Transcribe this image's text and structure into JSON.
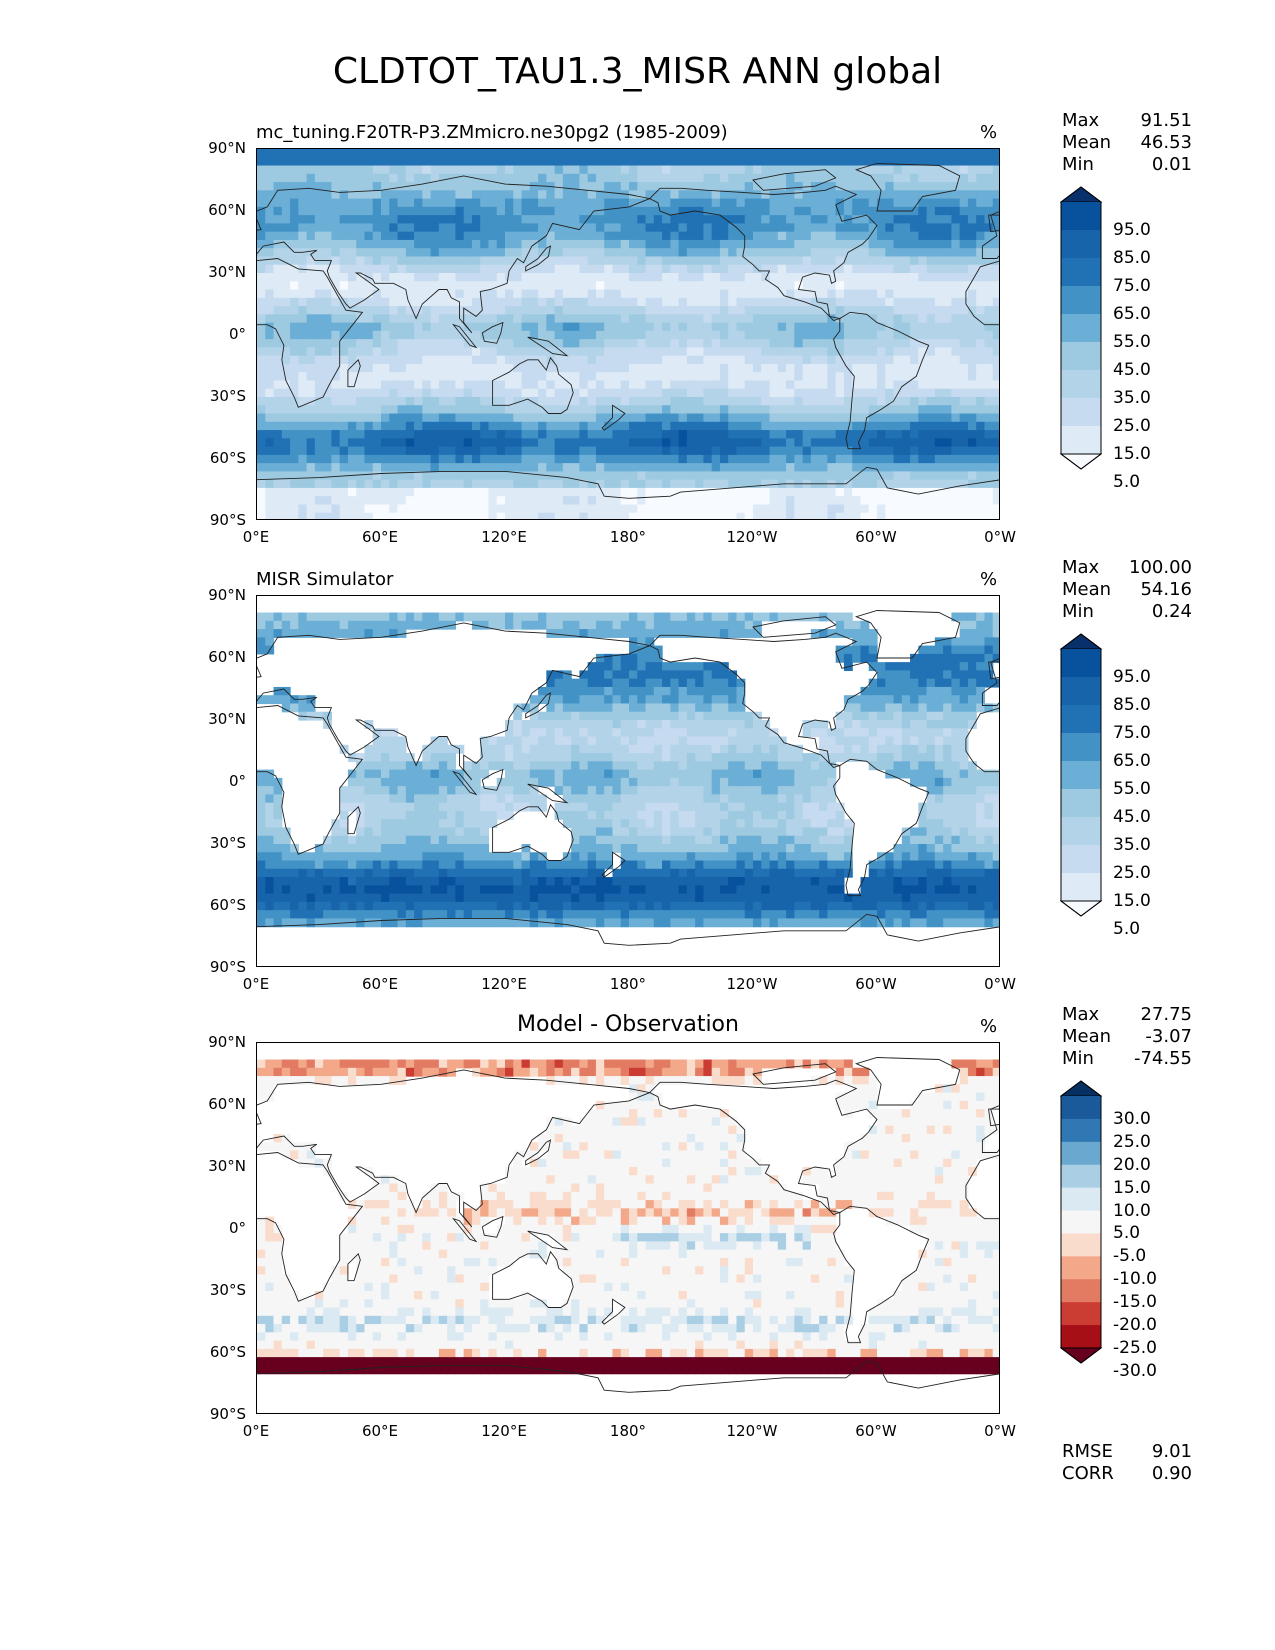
{
  "figure_title": "CLDTOT_TAU1.3_MISR ANN global",
  "y_ticks": [
    "90°N",
    "60°N",
    "30°N",
    "0°",
    "30°S",
    "60°S",
    "90°S"
  ],
  "x_ticks": [
    "0°E",
    "60°E",
    "120°E",
    "180°",
    "120°W",
    "60°W",
    "0°W"
  ],
  "colors": {
    "blues": [
      "#f7fbff",
      "#deebf7",
      "#c6dbef",
      "#b3d3e8",
      "#9ecae1",
      "#6baed6",
      "#4292c6",
      "#2171b5",
      "#1764ab",
      "#08519c",
      "#08306b"
    ],
    "diverging": [
      "#67001f",
      "#a50f15",
      "#cb3c33",
      "#e27b62",
      "#f2a889",
      "#fadccc",
      "#f6f6f6",
      "#dbeaf2",
      "#aacfe5",
      "#6aa8d0",
      "#2f78b4",
      "#1b5a9a",
      "#053061"
    ]
  },
  "chart_data": [
    {
      "type": "heatmap",
      "title": "mc_tuning.F20TR-P3.ZMmicro.ne30pg2 (1985-2009)",
      "units": "%",
      "stats": [
        [
          "Max",
          "91.51"
        ],
        [
          "Mean",
          "46.53"
        ],
        [
          "Min",
          "0.01"
        ]
      ],
      "colorbar_levels": [
        "95.0",
        "85.0",
        "75.0",
        "65.0",
        "55.0",
        "45.0",
        "35.0",
        "25.0",
        "15.0",
        "5.0"
      ],
      "extend": "both",
      "field": "model",
      "xlim": [
        0,
        360
      ],
      "ylim": [
        -90,
        90
      ]
    },
    {
      "type": "heatmap",
      "title": "MISR Simulator",
      "units": "%",
      "stats": [
        [
          "Max",
          "100.00"
        ],
        [
          "Mean",
          "54.16"
        ],
        [
          "Min",
          "0.24"
        ]
      ],
      "colorbar_levels": [
        "95.0",
        "85.0",
        "75.0",
        "65.0",
        "55.0",
        "45.0",
        "35.0",
        "25.0",
        "15.0",
        "5.0"
      ],
      "extend": "both",
      "field": "obs",
      "xlim": [
        0,
        360
      ],
      "ylim": [
        -90,
        90
      ]
    },
    {
      "type": "heatmap",
      "title": "Model - Observation",
      "units": "%",
      "stats": [
        [
          "Max",
          "27.75"
        ],
        [
          "Mean",
          "-3.07"
        ],
        [
          "Min",
          "-74.55"
        ]
      ],
      "colorbar_levels": [
        "30.0",
        "25.0",
        "20.0",
        "15.0",
        "10.0",
        "5.0",
        "-5.0",
        "-10.0",
        "-15.0",
        "-20.0",
        "-25.0",
        "-30.0"
      ],
      "extend": "both",
      "field": "diff",
      "metrics": [
        [
          "RMSE",
          "9.01"
        ],
        [
          "CORR",
          "0.90"
        ]
      ],
      "xlim": [
        0,
        360
      ],
      "ylim": [
        -90,
        90
      ]
    }
  ]
}
